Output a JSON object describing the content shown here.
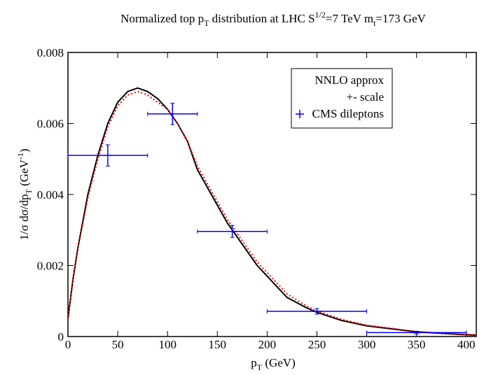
{
  "chart_data": {
    "type": "line",
    "title_parts": [
      {
        "text": "Normalized top p",
        "shift": "normal"
      },
      {
        "text": "T",
        "shift": "sub"
      },
      {
        "text": " distribution at LHC   S",
        "shift": "normal"
      },
      {
        "text": "1/2",
        "shift": "sup"
      },
      {
        "text": "=7 TeV  m",
        "shift": "normal"
      },
      {
        "text": "t",
        "shift": "sub"
      },
      {
        "text": "=173 GeV",
        "shift": "normal"
      }
    ],
    "xlabel_parts": [
      {
        "text": "p",
        "shift": "normal"
      },
      {
        "text": "T",
        "shift": "sub"
      },
      {
        "text": " (GeV)",
        "shift": "normal"
      }
    ],
    "ylabel_parts": [
      {
        "text": "1/σ  dσ/dp",
        "shift": "normal"
      },
      {
        "text": "T",
        "shift": "sub"
      },
      {
        "text": " (GeV",
        "shift": "normal"
      },
      {
        "text": "-1",
        "shift": "sup"
      },
      {
        "text": ")",
        "shift": "normal"
      }
    ],
    "xlim": [
      0,
      410
    ],
    "ylim": [
      0,
      0.008
    ],
    "xticks": [
      0,
      50,
      100,
      150,
      200,
      250,
      300,
      350,
      400
    ],
    "yticks": [
      0,
      0.002,
      0.004,
      0.006,
      0.008
    ],
    "legend": "upper right",
    "series": [
      {
        "name": "NNLO approx",
        "color": "#000000",
        "style": "solid",
        "x": [
          0,
          5,
          10,
          20,
          30,
          40,
          50,
          60,
          70,
          80,
          90,
          100,
          110,
          120,
          130,
          140,
          150,
          160,
          170,
          180,
          190,
          200,
          220,
          240,
          250,
          275,
          300,
          350,
          400,
          410
        ],
        "values": [
          0.0005,
          0.0016,
          0.0025,
          0.004,
          0.0051,
          0.006,
          0.0066,
          0.0069,
          0.007,
          0.0069,
          0.0067,
          0.0064,
          0.006,
          0.0055,
          0.0047,
          0.0042,
          0.0037,
          0.0032,
          0.0028,
          0.0024,
          0.002,
          0.0017,
          0.0011,
          0.0008,
          0.00068,
          0.00045,
          0.0003,
          0.00013,
          5e-05,
          4e-05
        ]
      },
      {
        "name": "+- scale",
        "color": "#ff0000",
        "style": "dotted",
        "x": [
          0,
          5,
          10,
          20,
          30,
          40,
          50,
          60,
          70,
          80,
          90,
          100,
          110,
          120,
          130,
          140,
          150,
          160,
          170,
          180,
          190,
          200,
          220,
          240,
          250,
          275,
          300,
          350,
          400,
          410
        ],
        "values": [
          0.0005,
          0.0016,
          0.0025,
          0.0039,
          0.005,
          0.0059,
          0.0065,
          0.0068,
          0.0069,
          0.0068,
          0.0066,
          0.0064,
          0.006,
          0.0055,
          0.0048,
          0.0043,
          0.0038,
          0.0033,
          0.0029,
          0.0025,
          0.0021,
          0.0018,
          0.0012,
          0.00085,
          0.00072,
          0.00048,
          0.00032,
          0.00014,
          6e-05,
          5e-05
        ]
      },
      {
        "name": "CMS dileptons",
        "color": "#0000ff",
        "style": "points",
        "x": [
          40,
          105,
          165,
          250,
          350
        ],
        "x_low": [
          0,
          80,
          130,
          200,
          300
        ],
        "x_high": [
          80,
          130,
          200,
          300,
          400
        ],
        "values": [
          0.0051,
          0.00627,
          0.00296,
          0.00071,
          0.00011
        ],
        "errors": [
          0.0003,
          0.0003,
          0.00017,
          8e-05,
          4e-05
        ]
      }
    ]
  }
}
